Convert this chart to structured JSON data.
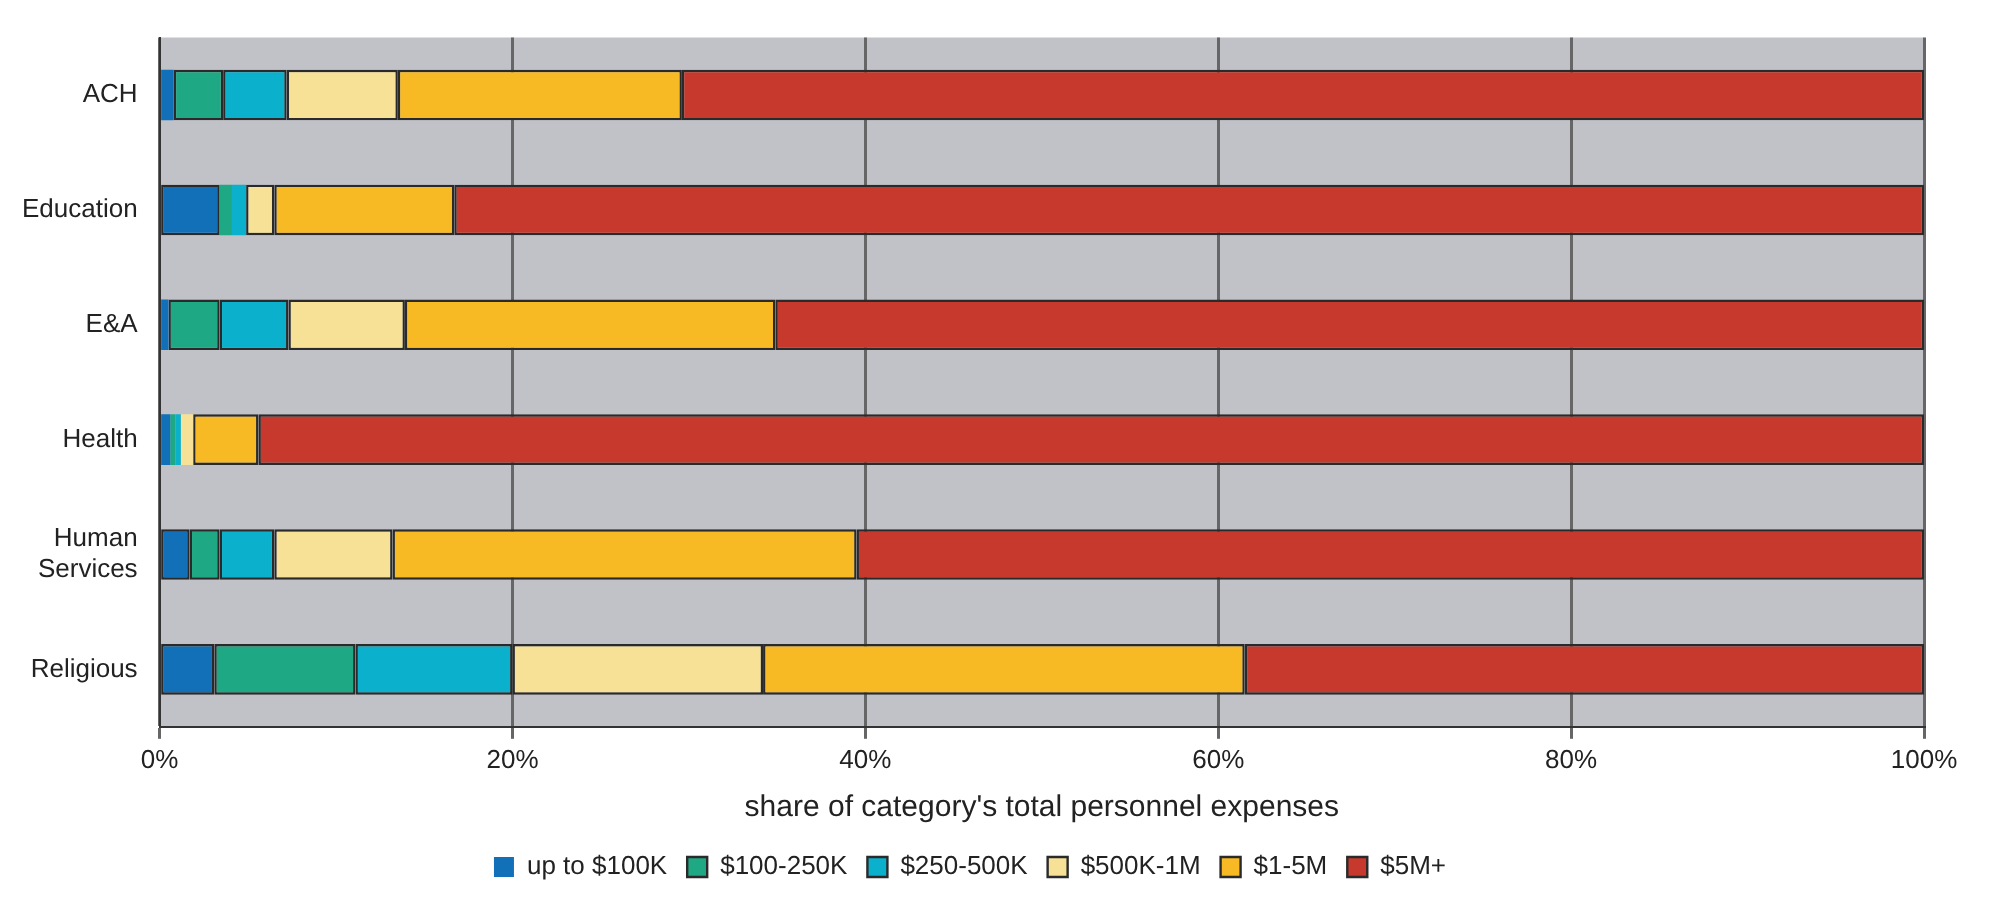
{
  "chart_data": {
    "type": "bar",
    "orientation": "horizontal",
    "stacked": true,
    "xlabel": "share of category's total personnel expenses",
    "categories": [
      "ACH",
      "Education",
      "E&A",
      "Health",
      "Human Services",
      "Religious"
    ],
    "series": [
      {
        "name": "up to $100K",
        "color": "#1170b8",
        "values": [
          0.8,
          3.4,
          0.5,
          0.6,
          1.7,
          3.1
        ]
      },
      {
        "name": "$100-250K",
        "color": "#1fa884",
        "values": [
          2.8,
          0.7,
          2.9,
          0.3,
          1.7,
          8.0
        ]
      },
      {
        "name": "$250-500K",
        "color": "#0bb1cc",
        "values": [
          3.6,
          0.8,
          3.9,
          0.3,
          3.1,
          8.9
        ]
      },
      {
        "name": "$500K-1M",
        "color": "#f7e196",
        "values": [
          6.3,
          1.6,
          6.6,
          0.7,
          6.7,
          14.2
        ]
      },
      {
        "name": "$1-5M",
        "color": "#f7b924",
        "values": [
          16.1,
          10.2,
          21.0,
          3.7,
          26.3,
          27.3
        ]
      },
      {
        "name": "$5M+",
        "color": "#c8392d",
        "values": [
          70.4,
          83.3,
          65.1,
          94.4,
          60.5,
          38.5
        ]
      }
    ],
    "xlim": [
      0,
      100
    ],
    "xticks": [
      {
        "value": 0,
        "label": "0%"
      },
      {
        "value": 20,
        "label": "20%"
      },
      {
        "value": 40,
        "label": "40%"
      },
      {
        "value": 60,
        "label": "60%"
      },
      {
        "value": 80,
        "label": "80%"
      },
      {
        "value": 100,
        "label": "100%"
      }
    ],
    "grid": "x",
    "legend": "bottom"
  }
}
